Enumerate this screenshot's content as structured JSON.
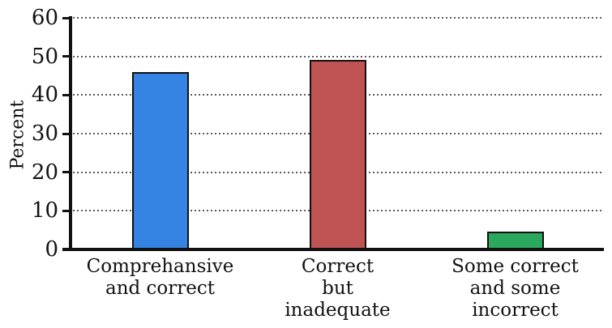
{
  "chart_data": {
    "type": "bar",
    "title": "",
    "xlabel": "",
    "ylabel": "Percent",
    "categories": [
      "Comprehansive\nand correct",
      "Correct\nbut\ninadequate",
      "Some correct\nand some\nincorrect"
    ],
    "values": [
      46,
      49,
      4.7
    ],
    "bar_colors": [
      "#3584e4",
      "#bf5252",
      "#2aa85e"
    ],
    "bar_edge_color": "#111111",
    "ylim": [
      0,
      60
    ],
    "yticks": [
      0,
      10,
      20,
      30,
      40,
      50,
      60
    ],
    "grid": "horizontal dotted gridlines at every y tick",
    "legend_position": "none"
  }
}
